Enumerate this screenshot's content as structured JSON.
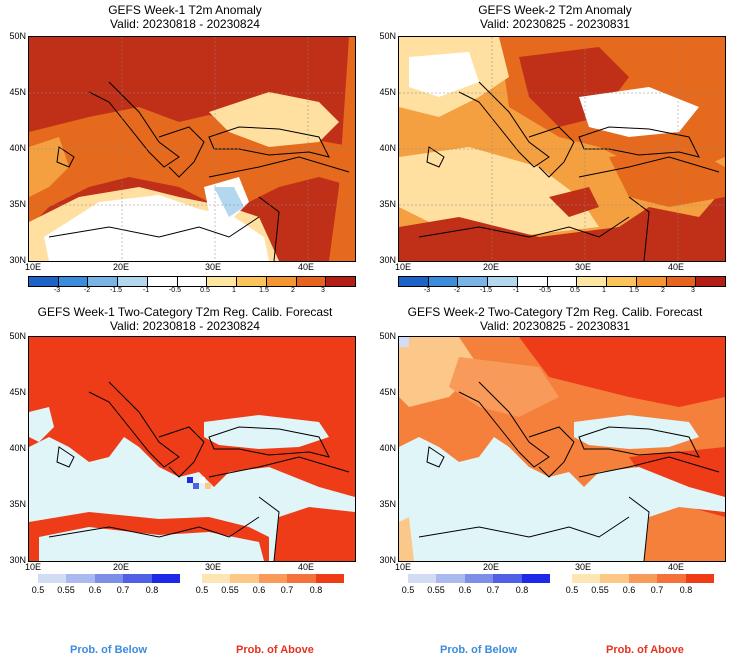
{
  "panels": {
    "p1": {
      "title": "GEFS Week-1 T2m Anomaly",
      "valid": "Valid: 20230818 - 20230824"
    },
    "p2": {
      "title": "GEFS Week-2 T2m Anomaly",
      "valid": "Valid: 20230825 - 20230831"
    },
    "p3": {
      "title": "GEFS Week-1 Two-Category T2m Reg. Calib. Forecast",
      "valid": "Valid: 20230818 - 20230824"
    },
    "p4": {
      "title": "GEFS Week-2 Two-Category T2m Reg. Calib. Forecast",
      "valid": "Valid: 20230825 - 20230831"
    }
  },
  "axes": {
    "lat_labels": [
      "50N",
      "45N",
      "40N",
      "35N",
      "30N"
    ],
    "lon_labels": [
      "10E",
      "20E",
      "30E",
      "40E"
    ]
  },
  "anomaly_colorbar": {
    "ticks": [
      "-3",
      "-2",
      "-1.5",
      "-1",
      "-0.5",
      "0.5",
      "1",
      "1.5",
      "2",
      "3"
    ],
    "colors": [
      "#1e64c8",
      "#3c8cdc",
      "#78b4e6",
      "#b4d7f0",
      "#ffffff",
      "#ffffff",
      "#ffe6a0",
      "#fbc45a",
      "#f59632",
      "#e6641e",
      "#b41e14"
    ]
  },
  "prob_colorbar": {
    "below_ticks": [
      "0.5",
      "0.55",
      "0.6",
      "0.7",
      "0.8"
    ],
    "above_ticks": [
      "0.5",
      "0.55",
      "0.6",
      "0.7",
      "0.8"
    ],
    "below_colors": [
      "#d2dcf5",
      "#aab9ee",
      "#7d8ee6",
      "#5060e6",
      "#1e28e6"
    ],
    "above_colors": [
      "#fde6b4",
      "#fbc887",
      "#f89a5a",
      "#f4703c",
      "#ef3c14"
    ]
  },
  "legends": {
    "below": "Prob. of Below",
    "above": "Prob. of Above",
    "below_color": "#3c8cdc",
    "above_color": "#e6321e"
  },
  "colors": {
    "sea_fill": "#e0f5f8",
    "land_hot": "#c03018",
    "land_warm": "#e66a1e",
    "land_mild": "#f5a040",
    "land_light": "#fde2a0",
    "prob_high": "#ee3c18",
    "prob_mid": "#f4803c",
    "prob_low": "#fbc88a"
  }
}
